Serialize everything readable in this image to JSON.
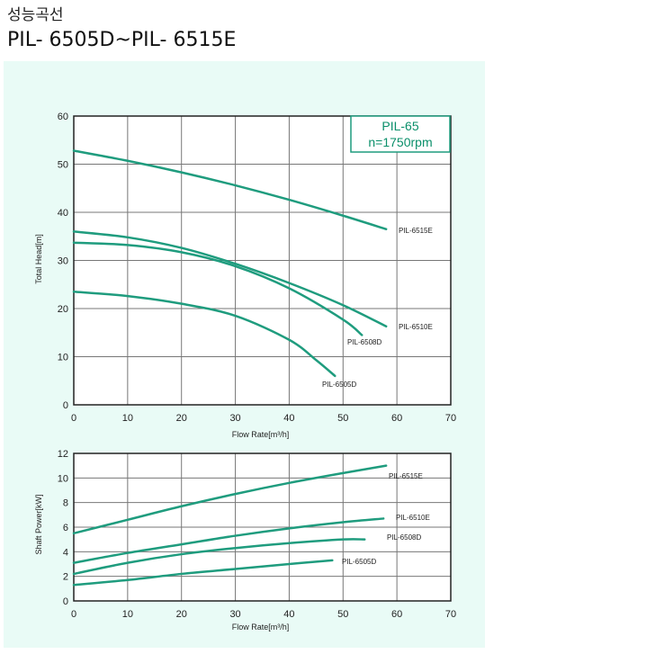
{
  "header": {
    "subtitle": "성능곡선",
    "model_range": "PIL- 6505D~PIL- 6515E"
  },
  "colors": {
    "curve": "#1f9c7e",
    "panel": "#e9fbf6",
    "plot_bg": "#ffffff",
    "grid": "#777777",
    "box": "#1f9c7e"
  },
  "chart_data": [
    {
      "type": "line",
      "title": "",
      "info_box": [
        "PIL-65",
        "n=1750rpm"
      ],
      "xlabel": "Flow Rate[m³/h]",
      "ylabel": "Total Head[m]",
      "xlim": [
        0,
        70
      ],
      "ylim": [
        0,
        60
      ],
      "x_ticks": [
        0,
        10,
        20,
        30,
        40,
        50,
        60,
        70
      ],
      "y_ticks": [
        0,
        10,
        20,
        30,
        40,
        50,
        60
      ],
      "grid": true,
      "series": [
        {
          "name": "PIL-6515E",
          "x": [
            0,
            10,
            20,
            30,
            40,
            50,
            58
          ],
          "y": [
            52.8,
            50.7,
            48.3,
            45.6,
            42.6,
            39.3,
            36.5
          ]
        },
        {
          "name": "PIL-6510E",
          "x": [
            0,
            10,
            20,
            30,
            40,
            50,
            58
          ],
          "y": [
            36.0,
            34.8,
            32.6,
            29.3,
            25.3,
            20.7,
            16.3
          ]
        },
        {
          "name": "PIL-6508D",
          "x": [
            0,
            10,
            20,
            30,
            40,
            50,
            53.5
          ],
          "y": [
            33.7,
            33.2,
            31.7,
            28.8,
            24.2,
            17.7,
            14.5
          ]
        },
        {
          "name": "PIL-6505D",
          "x": [
            0,
            10,
            20,
            30,
            40,
            45,
            48.5
          ],
          "y": [
            23.5,
            22.6,
            21.0,
            18.5,
            13.5,
            9.3,
            6.0
          ]
        }
      ]
    },
    {
      "type": "line",
      "title": "",
      "xlabel": "Flow Rate[m³/h]",
      "ylabel": "Shaft Power[kW]",
      "xlim": [
        0,
        70
      ],
      "ylim": [
        0,
        12
      ],
      "x_ticks": [
        0,
        10,
        20,
        30,
        40,
        50,
        60,
        70
      ],
      "y_ticks": [
        0,
        2,
        4,
        6,
        8,
        10,
        12
      ],
      "grid": true,
      "series": [
        {
          "name": "PIL-6515E",
          "x": [
            0,
            10,
            20,
            30,
            40,
            50,
            58
          ],
          "y": [
            5.5,
            6.6,
            7.7,
            8.7,
            9.6,
            10.4,
            11.0
          ]
        },
        {
          "name": "PIL-6510E",
          "x": [
            0,
            10,
            20,
            30,
            40,
            50,
            57.5
          ],
          "y": [
            3.1,
            3.9,
            4.6,
            5.3,
            5.9,
            6.4,
            6.7
          ]
        },
        {
          "name": "PIL-6508D",
          "x": [
            0,
            10,
            20,
            30,
            40,
            50,
            54
          ],
          "y": [
            2.2,
            3.1,
            3.8,
            4.3,
            4.7,
            5.0,
            5.0
          ]
        },
        {
          "name": "PIL-6505D",
          "x": [
            0,
            10,
            20,
            30,
            40,
            48
          ],
          "y": [
            1.3,
            1.7,
            2.2,
            2.6,
            3.0,
            3.3
          ]
        }
      ]
    }
  ]
}
